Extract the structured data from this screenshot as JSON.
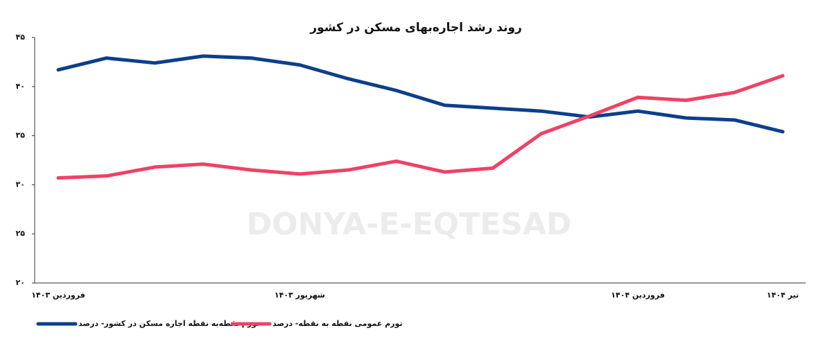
{
  "chart_data": {
    "type": "line",
    "title": "روند رشد اجاره‌بهای مسکن در کشور",
    "watermark": "DONYA-E-EQTESAD",
    "categories": [
      "فروردین ۱۴۰۳",
      null,
      null,
      null,
      null,
      "شهریور ۱۴۰۳",
      null,
      null,
      null,
      null,
      null,
      null,
      "فروردین ۱۴۰۴",
      null,
      null,
      "تیر ۱۴۰۴"
    ],
    "series": [
      {
        "name": "تورم نقطه‌به نقطه اجاره مسکن در کشور- درصد",
        "color": "#0d3f8a",
        "values": [
          41.7,
          42.9,
          42.4,
          43.1,
          42.9,
          42.2,
          40.8,
          39.6,
          38.1,
          37.8,
          37.5,
          36.9,
          37.5,
          36.8,
          36.6,
          35.4
        ]
      },
      {
        "name": "تورم عمومی نقطه به نقطه- درصد",
        "color": "#ee4266",
        "values": [
          30.7,
          30.9,
          31.8,
          32.1,
          31.5,
          31.1,
          31.5,
          32.4,
          31.3,
          31.7,
          35.2,
          37.0,
          38.9,
          38.6,
          39.4,
          41.1
        ]
      }
    ],
    "ylim": [
      20,
      45
    ],
    "yticks": [
      {
        "value": 20,
        "label": "۲۰"
      },
      {
        "value": 25,
        "label": "۲۵"
      },
      {
        "value": 30,
        "label": "۳۰"
      },
      {
        "value": 35,
        "label": "۳۵"
      },
      {
        "value": 40,
        "label": "۴۰"
      },
      {
        "value": 45,
        "label": "۴۵"
      }
    ],
    "grid": false
  }
}
